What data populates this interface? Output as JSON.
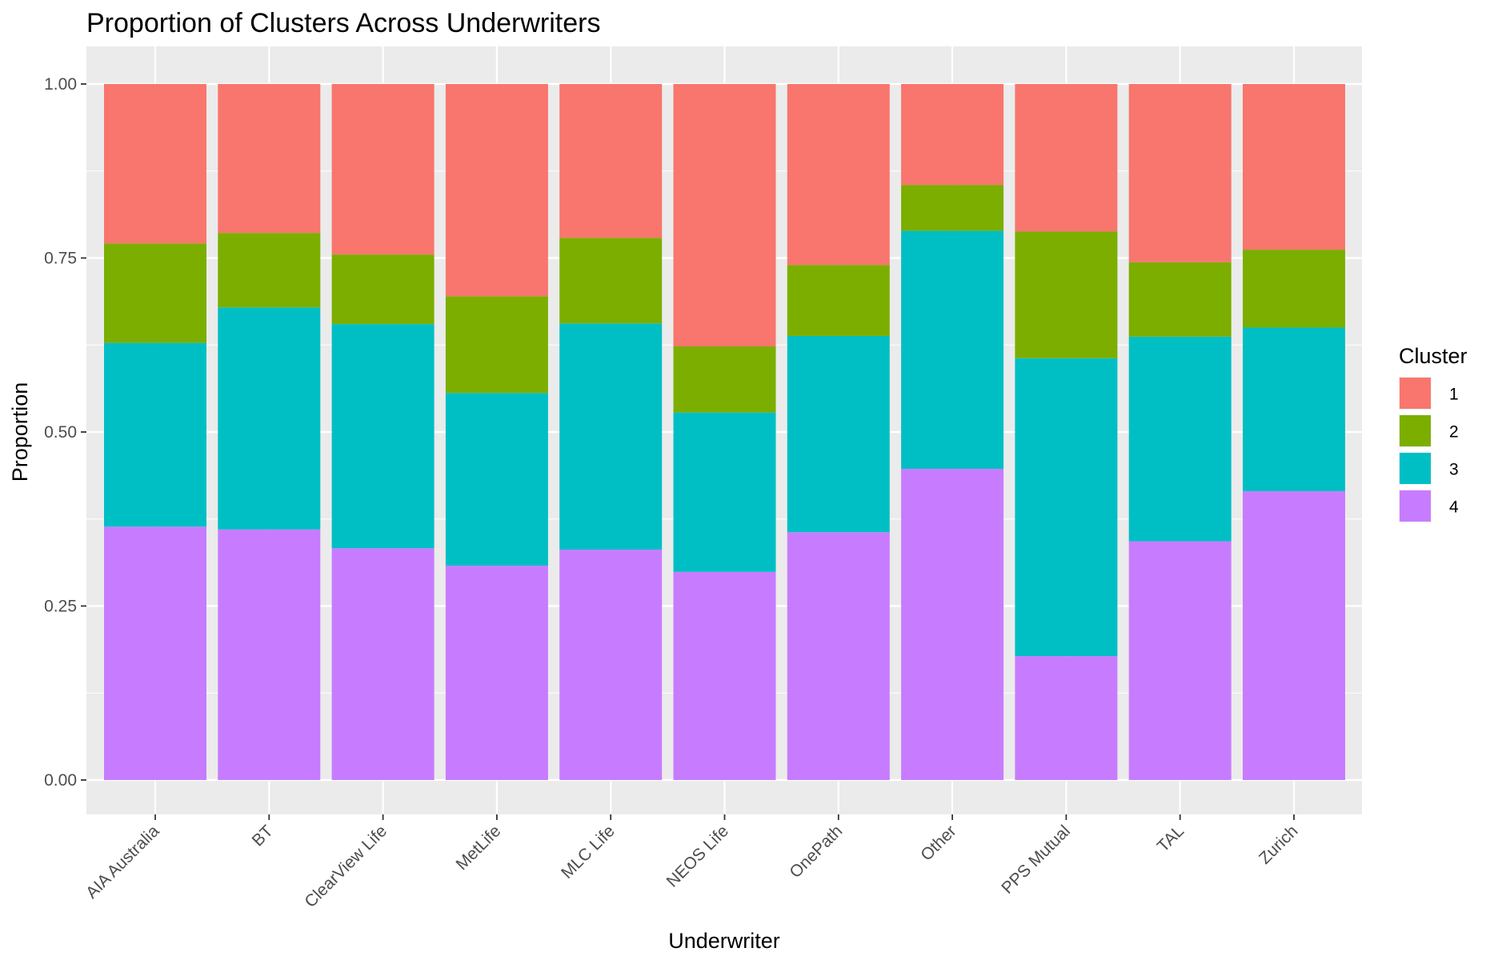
{
  "chart_data": {
    "type": "bar",
    "stacked": true,
    "title": "Proportion of Clusters Across Underwriters",
    "xlabel": "Underwriter",
    "ylabel": "Proportion",
    "ylim": [
      0,
      1
    ],
    "yticks": [
      "0.00",
      "0.25",
      "0.50",
      "0.75",
      "1.00"
    ],
    "grid": true,
    "legend": {
      "title": "Cluster",
      "position": "right"
    },
    "categories": [
      "AIA Australia",
      "BT",
      "ClearView Life",
      "MetLife",
      "MLC Life",
      "NEOS Life",
      "OnePath",
      "Other",
      "PPS Mutual",
      "TAL",
      "Zurich"
    ],
    "series": [
      {
        "name": "1",
        "color": "#F8766D",
        "values": [
          0.229,
          0.214,
          0.245,
          0.305,
          0.221,
          0.377,
          0.26,
          0.145,
          0.212,
          0.256,
          0.238
        ]
      },
      {
        "name": "2",
        "color": "#7CAE00",
        "values": [
          0.143,
          0.107,
          0.1,
          0.139,
          0.123,
          0.095,
          0.102,
          0.066,
          0.182,
          0.107,
          0.112
        ]
      },
      {
        "name": "3",
        "color": "#00BFC4",
        "values": [
          0.264,
          0.319,
          0.322,
          0.248,
          0.325,
          0.229,
          0.282,
          0.342,
          0.428,
          0.294,
          0.235
        ]
      },
      {
        "name": "4",
        "color": "#C77CFF",
        "values": [
          0.364,
          0.36,
          0.333,
          0.308,
          0.331,
          0.299,
          0.356,
          0.447,
          0.178,
          0.343,
          0.415
        ]
      }
    ]
  }
}
